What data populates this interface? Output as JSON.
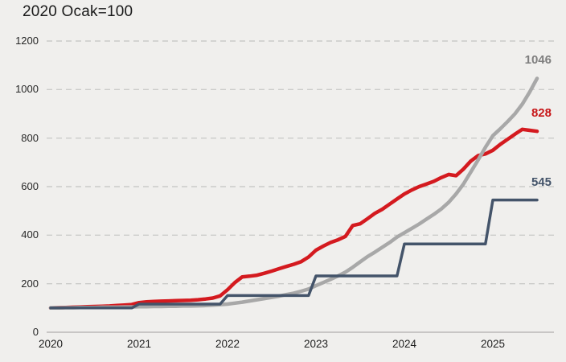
{
  "title": "2020 Ocak=100",
  "colors": {
    "background": "#f0efed",
    "grid": "#cbcbc9",
    "axis": "#c2c1bf",
    "red_line": "#d41a1f",
    "gray_line": "#a8a8a8",
    "navy_line": "#44546a",
    "red_label": "#c71618",
    "gray_label": "#7f7f7f",
    "navy_label": "#44546a",
    "title_text": "#1a1a1a",
    "tick_text": "#262626"
  },
  "chart_data": {
    "type": "line",
    "title": "2020 Ocak=100",
    "xlabel": "",
    "ylabel": "",
    "ylim": [
      0,
      1200
    ],
    "y_ticks": [
      "0",
      "200",
      "400",
      "600",
      "800",
      "1000",
      "1200"
    ],
    "x_tick_labels": [
      "2020",
      "2021",
      "2022",
      "2023",
      "2024",
      "2025"
    ],
    "x_start": "2020-01",
    "x_end": "2025-07",
    "frequency": "monthly",
    "n_points": 67,
    "grid": "horizontal-dashed",
    "legend": "none",
    "series": [
      {
        "name": "red-series",
        "color": "#d41a1f",
        "stroke_width": 4.5,
        "end_label": "828",
        "values": [
          100,
          101,
          102,
          103,
          104,
          105,
          106,
          107,
          108,
          110,
          112,
          114,
          122,
          125,
          127,
          128,
          129,
          130,
          131,
          132,
          134,
          137,
          141,
          150,
          175,
          205,
          228,
          231,
          235,
          243,
          252,
          262,
          271,
          280,
          291,
          310,
          338,
          355,
          370,
          381,
          395,
          440,
          447,
          468,
          490,
          507,
          528,
          549,
          570,
          586,
          600,
          611,
          622,
          637,
          650,
          645,
          672,
          705,
          728,
          735,
          750,
          774,
          795,
          816,
          836,
          832,
          828
        ]
      },
      {
        "name": "gray-series",
        "color": "#a8a8a8",
        "stroke_width": 4.5,
        "end_label": "1046",
        "values": [
          100,
          100,
          101,
          101,
          102,
          102,
          102,
          103,
          103,
          103,
          104,
          104,
          105,
          105,
          106,
          106,
          107,
          107,
          108,
          108,
          109,
          110,
          112,
          114,
          116,
          120,
          124,
          129,
          134,
          139,
          144,
          149,
          155,
          161,
          169,
          178,
          192,
          205,
          218,
          232,
          248,
          268,
          290,
          312,
          330,
          350,
          370,
          392,
          410,
          428,
          446,
          466,
          486,
          508,
          535,
          570,
          610,
          660,
          710,
          762,
          810,
          838,
          868,
          900,
          940,
          990,
          1046
        ]
      },
      {
        "name": "navy-series",
        "color": "#44546a",
        "stroke_width": 3.5,
        "end_label": "545",
        "values": [
          100,
          100,
          100,
          100,
          100,
          100,
          100,
          100,
          100,
          100,
          100,
          100,
          116,
          116,
          116,
          116,
          116,
          116,
          116,
          116,
          116,
          116,
          116,
          116,
          151,
          151,
          151,
          151,
          151,
          151,
          151,
          151,
          151,
          151,
          151,
          151,
          232,
          232,
          232,
          232,
          232,
          232,
          232,
          232,
          232,
          232,
          232,
          232,
          364,
          364,
          364,
          364,
          364,
          364,
          364,
          364,
          364,
          364,
          364,
          364,
          545,
          545,
          545,
          545,
          545,
          545,
          545
        ]
      }
    ]
  }
}
